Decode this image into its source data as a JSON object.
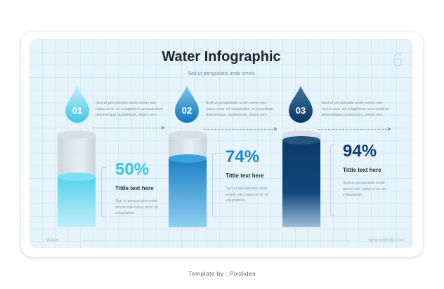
{
  "slide": {
    "title": "Water Infographic",
    "subtitle": "Sed ut perspiciatis unde omnis",
    "page_number": "6",
    "footer_left": "Water",
    "footer_right": "www.website.com"
  },
  "steps": [
    {
      "number": "01",
      "description": "Sed ut perspiciatis unde omnis iste natus error sit voluptatem accusantium doloremque laudantium, totam rem",
      "color": "#5fd0ea"
    },
    {
      "number": "02",
      "description": "Sed ut perspiciatis unde omnis iste natus error sit voluptatem accusantium doloremque laudantium, totam rem",
      "color": "#1e8fd0"
    },
    {
      "number": "03",
      "description": "Sed ut perspiciatis unde omnis iste natus error sit voluptatem accusantium doloremque laudantium, totam rem",
      "color": "#0f3f6e"
    }
  ],
  "stats": [
    {
      "percent": "50%",
      "level": 0.5,
      "title": "Tittle text here",
      "description": "Sed ut perspiciatis unde omnis iste natus error sit voluptatem",
      "color": "#3cc6e6"
    },
    {
      "percent": "74%",
      "level": 0.74,
      "title": "Tittle text here",
      "description": "Sed ut perspiciatis unde omnis iste natus error sit voluptatem",
      "color": "#1a87c9"
    },
    {
      "percent": "94%",
      "level": 0.94,
      "title": "Tittle text here",
      "description": "Sed ut perspiciatis unde omnis iste natus error sit voluptatem",
      "color": "#0f3d69"
    }
  ],
  "credit": "Template by : Pixslides"
}
